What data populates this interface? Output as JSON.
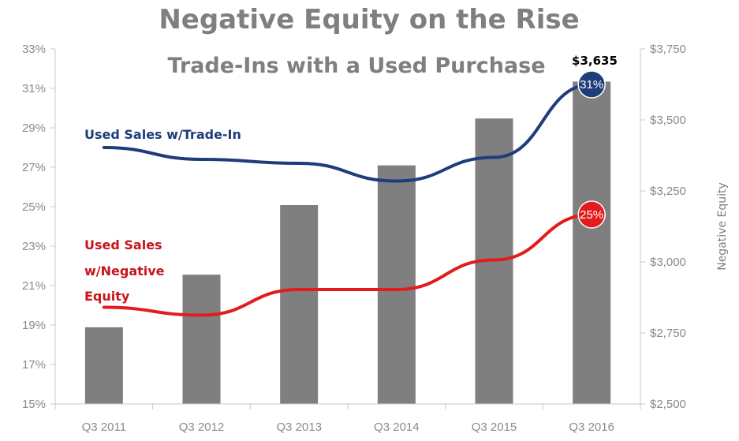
{
  "chart_data": {
    "type": "bar",
    "title": "Negative Equity on the Rise",
    "subtitle": "Trade-Ins with a Used Purchase",
    "categories": [
      "Q3 2011",
      "Q3 2012",
      "Q3 2013",
      "Q3 2014",
      "Q3 2015",
      "Q3 2016"
    ],
    "bar_series": {
      "values": [
        2770,
        2955,
        3200,
        3340,
        3505,
        3635
      ],
      "axis": "right",
      "color": "#7f7f7f"
    },
    "line_series": [
      {
        "name": "Used Sales w/Trade-In",
        "label_lines": [
          "Used Sales w/Trade-In"
        ],
        "values": [
          28.0,
          27.4,
          27.2,
          26.3,
          27.5,
          31.2
        ],
        "color": "#1f3d7a",
        "end_marker": "31%"
      },
      {
        "name": "Used Sales w/Negative Equity",
        "label_lines": [
          "Used Sales",
          "w/Negative",
          "Equity"
        ],
        "values": [
          19.9,
          19.5,
          20.8,
          20.8,
          22.3,
          24.6
        ],
        "color": "#e31b1b",
        "end_marker": "25%"
      }
    ],
    "bar_value_label": "$3,635",
    "left_axis": {
      "ylim": [
        15,
        33
      ],
      "ticks": [
        15,
        17,
        19,
        21,
        23,
        25,
        27,
        29,
        31,
        33
      ],
      "tick_labels": [
        "15%",
        "17%",
        "19%",
        "21%",
        "23%",
        "25%",
        "27%",
        "29%",
        "31%",
        "33%"
      ]
    },
    "right_axis": {
      "label": "Negative Equity",
      "ylim": [
        2500,
        3750
      ],
      "ticks": [
        2500,
        2750,
        3000,
        3250,
        3500,
        3750
      ],
      "tick_labels": [
        "$2,500",
        "$2,750",
        "$3,000",
        "$3,250",
        "$3,500",
        "$3,750"
      ]
    },
    "grid": false,
    "legend": "none"
  }
}
